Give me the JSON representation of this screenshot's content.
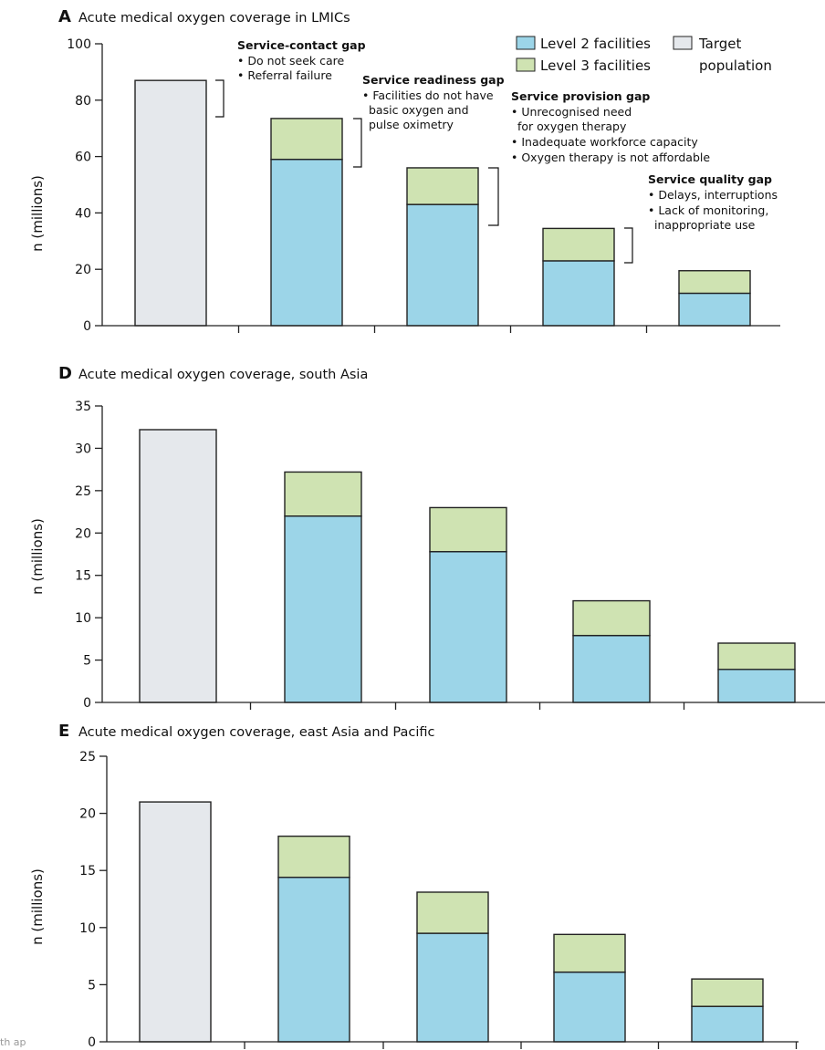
{
  "chart_data": [
    {
      "type": "bar",
      "panel": "A",
      "title": "Acute medical oxygen coverage in LMICs",
      "ylabel": "n (millions)",
      "ylim": [
        0,
        100
      ],
      "yticks": [
        0,
        20,
        40,
        60,
        80,
        100
      ],
      "series": [
        {
          "name": "Target population",
          "values": [
            87,
            null,
            null,
            null,
            null
          ],
          "color": "#e5e8ec"
        },
        {
          "name": "Level 2 facilities",
          "values": [
            null,
            59,
            43,
            23,
            11.5
          ],
          "color": "#9cd5e8"
        },
        {
          "name": "Level 3 facilities",
          "values": [
            null,
            14.5,
            13,
            11.5,
            8
          ],
          "color": "#cfe3b2"
        }
      ],
      "legend": "top-right",
      "annotations": [
        {
          "title": "Service-contact gap",
          "items": [
            "• Do not seek care",
            "• Referral failure"
          ]
        },
        {
          "title": "Service readiness gap",
          "items": [
            "• Facilities do not have",
            "basic oxygen and",
            "pulse oximetry"
          ]
        },
        {
          "title": "Service provision gap",
          "items": [
            "• Unrecognised need",
            "for oxygen therapy",
            "• Inadequate workforce capacity",
            "• Oxygen therapy is not affordable"
          ]
        },
        {
          "title": "Service quality gap",
          "items": [
            "• Delays, interruptions",
            "• Lack of monitoring,",
            "inappropriate use"
          ]
        }
      ]
    },
    {
      "type": "bar",
      "panel": "D",
      "title": "Acute medical oxygen coverage, south Asia",
      "ylabel": "n (millions)",
      "ylim": [
        0,
        35
      ],
      "yticks": [
        0,
        5,
        10,
        15,
        20,
        25,
        30,
        35
      ],
      "series": [
        {
          "name": "Target population",
          "values": [
            32.2,
            null,
            null,
            null,
            null
          ],
          "color": "#e5e8ec"
        },
        {
          "name": "Level 2 facilities",
          "values": [
            null,
            22,
            17.8,
            7.9,
            3.9
          ],
          "color": "#9cd5e8"
        },
        {
          "name": "Level 3 facilities",
          "values": [
            null,
            5.2,
            5.2,
            4.1,
            3.1
          ],
          "color": "#cfe3b2"
        }
      ]
    },
    {
      "type": "bar",
      "panel": "E",
      "title": "Acute medical oxygen coverage, east Asia and Pacific",
      "ylabel": "n (millions)",
      "ylim": [
        0,
        25
      ],
      "yticks": [
        0,
        5,
        10,
        15,
        20,
        25
      ],
      "series": [
        {
          "name": "Target population",
          "values": [
            21,
            null,
            null,
            null,
            null
          ],
          "color": "#e5e8ec"
        },
        {
          "name": "Level 2 facilities",
          "values": [
            null,
            14.4,
            9.5,
            6.1,
            3.1
          ],
          "color": "#9cd5e8"
        },
        {
          "name": "Level 3 facilities",
          "values": [
            null,
            3.6,
            3.6,
            3.3,
            2.4
          ],
          "color": "#cfe3b2"
        }
      ]
    }
  ],
  "legend": {
    "level2": "Level 2 facilities",
    "level3": "Level 3 facilities",
    "target_line1": "Target",
    "target_line2": "population"
  },
  "edge_text": "th ap"
}
